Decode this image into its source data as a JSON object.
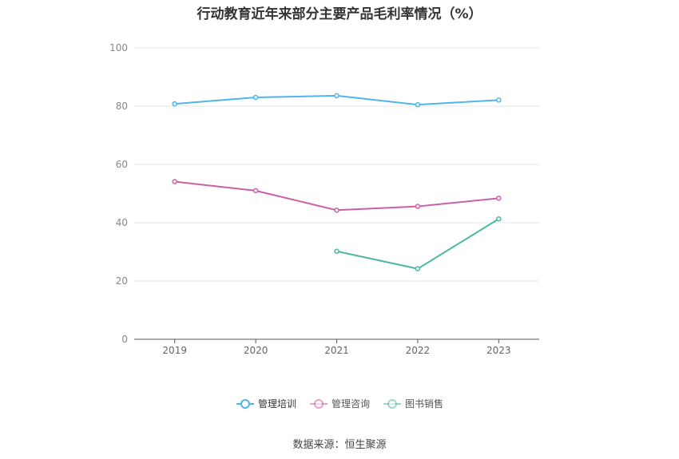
{
  "title": "行动教育近年来部分主要产品毛利率情况（%）",
  "source": "数据来源：恒生聚源",
  "chart_data": {
    "type": "line",
    "title": "行动教育近年来部分主要产品毛利率情况（%）",
    "categories": [
      "2019",
      "2020",
      "2021",
      "2022",
      "2023"
    ],
    "ylim": [
      0,
      100
    ],
    "yticks": [
      0,
      20,
      40,
      60,
      80,
      100
    ],
    "grid": true,
    "legend_position": "bottom",
    "series": [
      {
        "name": "管理培训",
        "color": "#4db6e8",
        "values": [
          80.8,
          83.0,
          83.6,
          80.5,
          82.1
        ]
      },
      {
        "name": "管理咨询",
        "color": "#cc5fa6",
        "values": [
          54.1,
          51.0,
          44.3,
          45.6,
          48.4
        ]
      },
      {
        "name": "图书销售",
        "color": "#4db8a0",
        "values": [
          null,
          null,
          30.2,
          24.2,
          41.3
        ]
      }
    ]
  }
}
